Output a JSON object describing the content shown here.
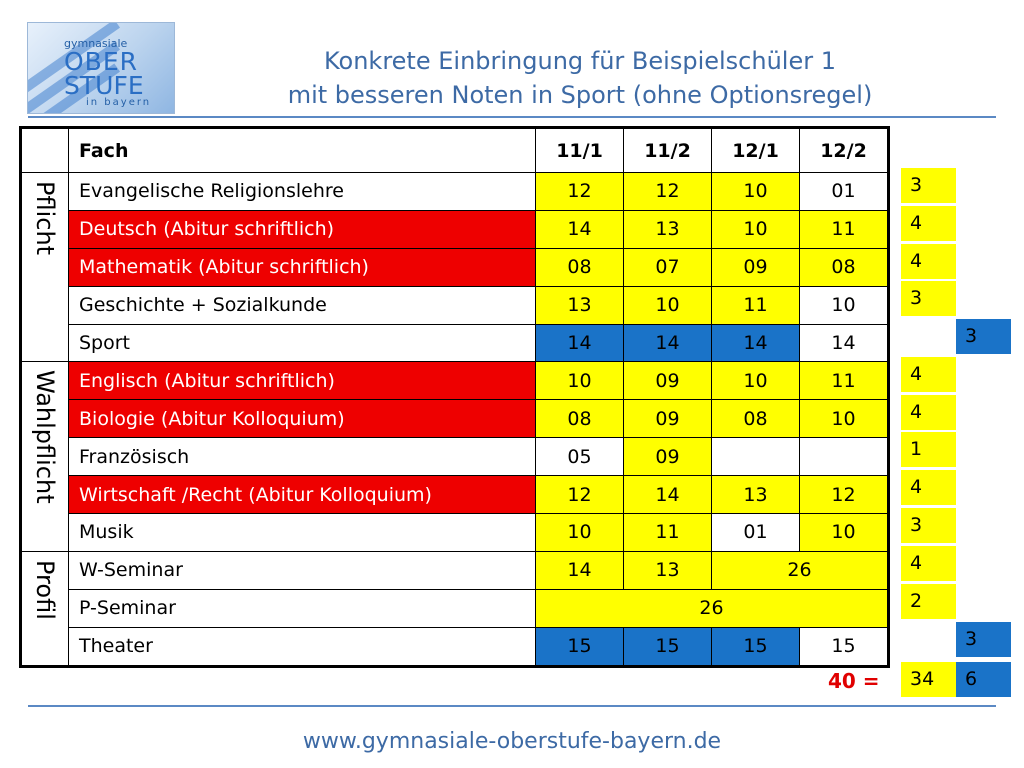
{
  "logo": {
    "line1": "gymnasiale",
    "line2": "OBER",
    "line3": "STUFE",
    "line4": "in bayern"
  },
  "title": {
    "line1": "Konkrete Einbringung für Beispielschüler 1",
    "line2": "mit besseren Noten in Sport (ohne Optionsregel)"
  },
  "table": {
    "headers": [
      "Fach",
      "11/1",
      "11/2",
      "12/1",
      "12/2"
    ],
    "categories": [
      "Pflicht",
      "Wahlpflicht",
      "Profil"
    ],
    "rows": [
      {
        "subject": "Evangelische Religionslehre",
        "grades": [
          "12",
          "12",
          "10",
          "01"
        ]
      },
      {
        "subject": "Deutsch (Abitur schriftlich)",
        "grades": [
          "14",
          "13",
          "10",
          "11"
        ]
      },
      {
        "subject": "Mathematik (Abitur schriftlich)",
        "grades": [
          "08",
          "07",
          "09",
          "08"
        ]
      },
      {
        "subject": "Geschichte + Sozialkunde",
        "grades": [
          "13",
          "10",
          "11",
          "10"
        ]
      },
      {
        "subject": "Sport",
        "grades": [
          "14",
          "14",
          "14",
          "14"
        ]
      },
      {
        "subject": "Englisch (Abitur schriftlich)",
        "grades": [
          "10",
          "09",
          "10",
          "11"
        ]
      },
      {
        "subject": "Biologie (Abitur Kolloquium)",
        "grades": [
          "08",
          "09",
          "08",
          "10"
        ]
      },
      {
        "subject": "Französisch",
        "grades": [
          "05",
          "09",
          "",
          ""
        ]
      },
      {
        "subject": "Wirtschaft /Recht (Abitur Kolloquium)",
        "grades": [
          "12",
          "14",
          "13",
          "12"
        ]
      },
      {
        "subject": "Musik",
        "grades": [
          "10",
          "11",
          "01",
          "10"
        ]
      },
      {
        "subject": "W-Seminar",
        "grades": [
          "14",
          "13",
          "26"
        ]
      },
      {
        "subject": "P-Seminar",
        "grades": [
          "26"
        ]
      },
      {
        "subject": "Theater",
        "grades": [
          "15",
          "15",
          "15",
          "15"
        ]
      }
    ]
  },
  "counts": [
    "3",
    "4",
    "4",
    "3",
    "3",
    "4",
    "4",
    "1",
    "4",
    "3",
    "4",
    "2",
    "3"
  ],
  "totals": {
    "label": "40 =",
    "yellow": "34",
    "blue": "6"
  },
  "colors": {
    "red": "#ee0000",
    "yellow": "#ffff00",
    "blue": "#1a73c8",
    "title": "#3d6aa5"
  },
  "footer": {
    "url": "www.gymnasiale-oberstufe-bayern.de"
  }
}
